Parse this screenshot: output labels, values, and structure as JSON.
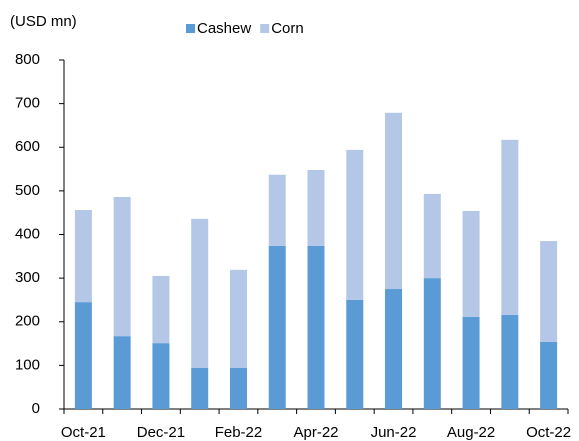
{
  "chart_data": {
    "type": "stacked_bar",
    "y_label": "(USD mn)",
    "categories": [
      "Oct-21",
      null,
      "Dec-21",
      null,
      "Feb-22",
      null,
      "Apr-22",
      null,
      "Jun-22",
      null,
      "Aug-22",
      null,
      "Oct-22"
    ],
    "series": [
      {
        "name": "Cashew",
        "color": "#5b9bd5",
        "values": [
          245,
          167,
          151,
          94,
          94,
          374,
          374,
          250,
          275,
          300,
          211,
          216,
          154
        ]
      },
      {
        "name": "Corn",
        "color": "#b4c7e7",
        "values": [
          211,
          319,
          154,
          342,
          225,
          163,
          174,
          344,
          404,
          193,
          243,
          401,
          231
        ]
      }
    ],
    "ylim": [
      0,
      800
    ],
    "yticks": [
      0,
      100,
      200,
      300,
      400,
      500,
      600,
      700,
      800
    ],
    "grid": false,
    "legend": "top"
  }
}
